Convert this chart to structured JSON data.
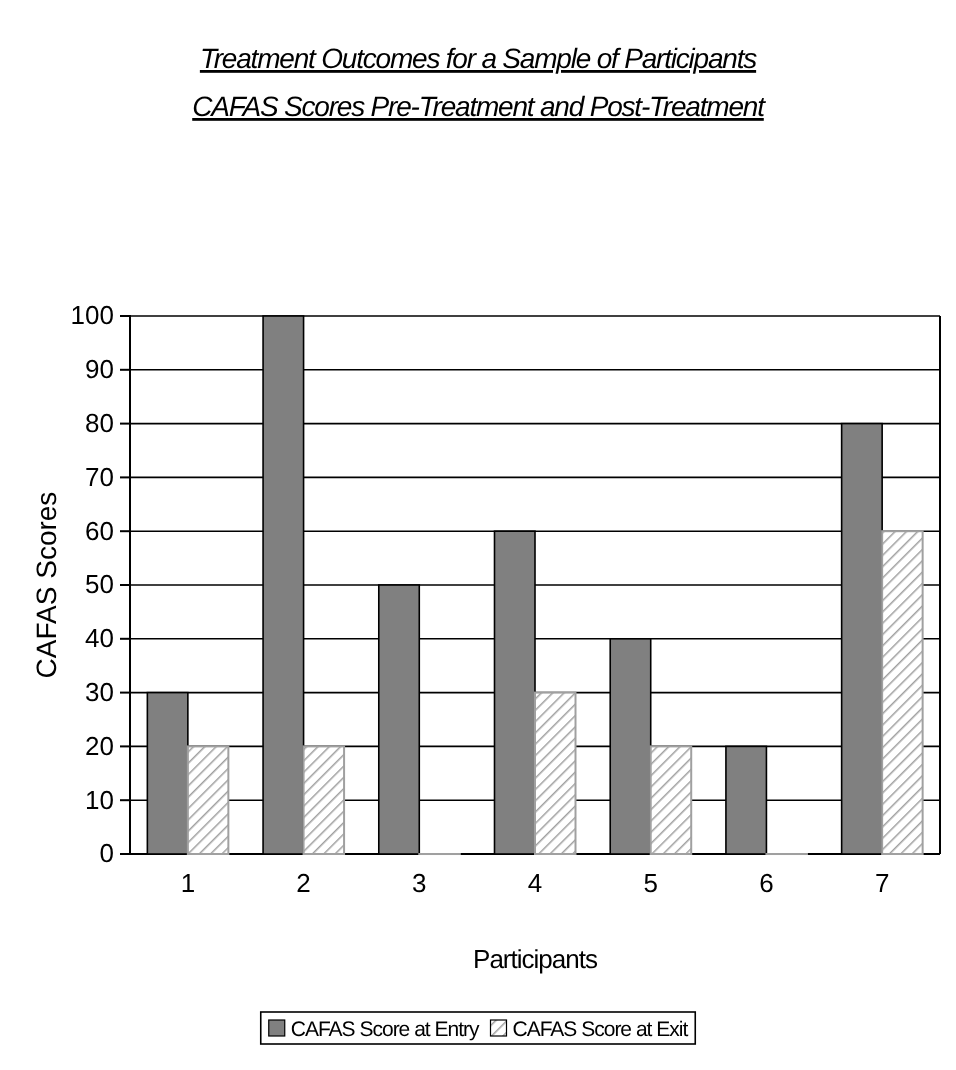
{
  "chart_data": {
    "type": "bar",
    "title": "Treatment Outcomes for a Sample of Participants",
    "subtitle": "CAFAS Scores Pre-Treatment and Post-Treatment",
    "xlabel": "Participants",
    "ylabel": "CAFAS Scores",
    "categories": [
      "1",
      "2",
      "3",
      "4",
      "5",
      "6",
      "7"
    ],
    "series": [
      {
        "name": "CAFAS Score at Entry",
        "color": "#808080",
        "values": [
          30,
          100,
          50,
          60,
          40,
          20,
          80
        ]
      },
      {
        "name": "CAFAS Score at Exit",
        "color": "#a0a0a0",
        "values": [
          20,
          20,
          0,
          30,
          20,
          0,
          60
        ]
      }
    ],
    "ylim": [
      0,
      100
    ],
    "yticks": [
      0,
      10,
      20,
      30,
      40,
      50,
      60,
      70,
      80,
      90,
      100
    ],
    "grid": "y",
    "legend": "bottom"
  }
}
